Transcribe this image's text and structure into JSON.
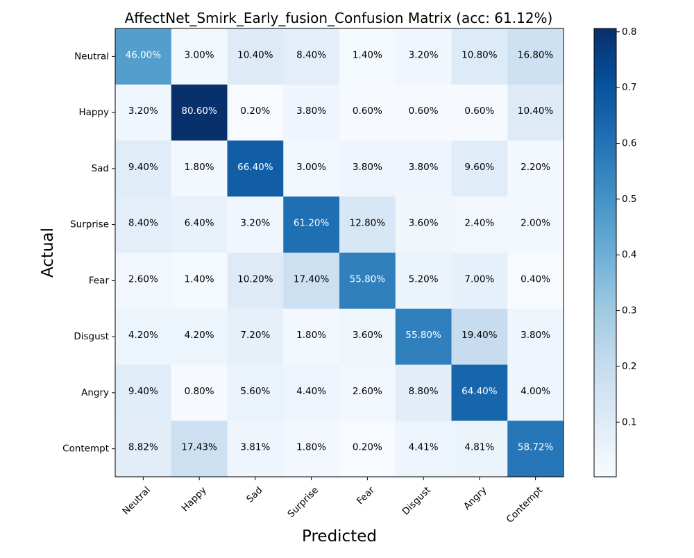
{
  "chart_data": {
    "type": "heatmap",
    "title": "AffectNet_Smirk_Early_fusion_Confusion Matrix (acc: 61.12%)",
    "xlabel": "Predicted",
    "ylabel": "Actual",
    "row_labels": [
      "Neutral",
      "Happy",
      "Sad",
      "Surprise",
      "Fear",
      "Disgust",
      "Angry",
      "Contempt"
    ],
    "col_labels": [
      "Neutral",
      "Happy",
      "Sad",
      "Surprise",
      "Fear",
      "Disgust",
      "Angry",
      "Contempt"
    ],
    "values": [
      [
        0.46,
        0.03,
        0.104,
        0.084,
        0.014,
        0.032,
        0.108,
        0.168
      ],
      [
        0.032,
        0.806,
        0.002,
        0.038,
        0.006,
        0.006,
        0.006,
        0.104
      ],
      [
        0.094,
        0.018,
        0.664,
        0.03,
        0.038,
        0.038,
        0.096,
        0.022
      ],
      [
        0.084,
        0.064,
        0.032,
        0.612,
        0.128,
        0.036,
        0.024,
        0.02
      ],
      [
        0.026,
        0.014,
        0.102,
        0.174,
        0.558,
        0.052,
        0.07,
        0.004
      ],
      [
        0.042,
        0.042,
        0.072,
        0.018,
        0.036,
        0.558,
        0.194,
        0.038
      ],
      [
        0.094,
        0.008,
        0.056,
        0.044,
        0.026,
        0.088,
        0.644,
        0.04
      ],
      [
        0.0882,
        0.1743,
        0.0381,
        0.018,
        0.002,
        0.0441,
        0.0481,
        0.5872
      ]
    ],
    "cell_labels": [
      [
        "46.00%",
        "3.00%",
        "10.40%",
        "8.40%",
        "1.40%",
        "3.20%",
        "10.80%",
        "16.80%"
      ],
      [
        "3.20%",
        "80.60%",
        "0.20%",
        "3.80%",
        "0.60%",
        "0.60%",
        "0.60%",
        "10.40%"
      ],
      [
        "9.40%",
        "1.80%",
        "66.40%",
        "3.00%",
        "3.80%",
        "3.80%",
        "9.60%",
        "2.20%"
      ],
      [
        "8.40%",
        "6.40%",
        "3.20%",
        "61.20%",
        "12.80%",
        "3.60%",
        "2.40%",
        "2.00%"
      ],
      [
        "2.60%",
        "1.40%",
        "10.20%",
        "17.40%",
        "55.80%",
        "5.20%",
        "7.00%",
        "0.40%"
      ],
      [
        "4.20%",
        "4.20%",
        "7.20%",
        "1.80%",
        "3.60%",
        "55.80%",
        "19.40%",
        "3.80%"
      ],
      [
        "9.40%",
        "0.80%",
        "5.60%",
        "4.40%",
        "2.60%",
        "8.80%",
        "64.40%",
        "4.00%"
      ],
      [
        "8.82%",
        "17.43%",
        "3.81%",
        "1.80%",
        "0.20%",
        "4.41%",
        "4.81%",
        "58.72%"
      ]
    ],
    "colormap": "Blues",
    "vmin": 0.002,
    "vmax": 0.806,
    "colorbar_ticks": [
      0.1,
      0.2,
      0.3,
      0.4,
      0.5,
      0.6,
      0.7,
      0.8
    ],
    "colorbar_tick_labels": [
      "0.1",
      "0.2",
      "0.3",
      "0.4",
      "0.5",
      "0.6",
      "0.7",
      "0.8"
    ],
    "text_color_dark": "#000000",
    "text_color_light": "#ffffff",
    "grid": false
  }
}
